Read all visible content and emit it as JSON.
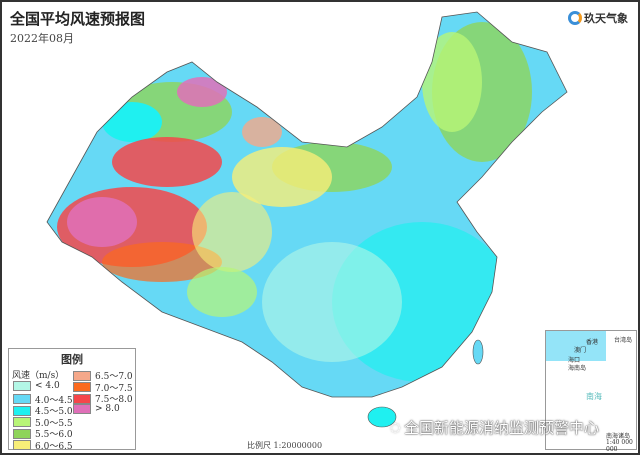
{
  "header": {
    "title": "全国平均风速预报图",
    "subtitle": "2022年08月"
  },
  "logo": {
    "text": "玖天气象"
  },
  "legend": {
    "title": "图例",
    "unit_label": "风速（m/s）",
    "items": [
      {
        "label": "< 4.0",
        "color": "#b3f7e6"
      },
      {
        "label": "4.0～4.5",
        "color": "#66d9f5"
      },
      {
        "label": "4.5～5.0",
        "color": "#1ff0f0"
      },
      {
        "label": "5.0～5.5",
        "color": "#b8f577"
      },
      {
        "label": "5.5～6.0",
        "color": "#8ed45a"
      },
      {
        "label": "6.0～6.5",
        "color": "#f8ee78"
      },
      {
        "label": "6.5～7.0",
        "color": "#f5a88a"
      },
      {
        "label": "7.0～7.5",
        "color": "#fb6a1e"
      },
      {
        "label": "7.5～8.0",
        "color": "#f5464a"
      },
      {
        "label": "> 8.0",
        "color": "#e070b8"
      }
    ]
  },
  "scale": "比例尺 1:20000000",
  "watermark": "全国新能源消纳监测预警中心",
  "inset": {
    "title": "南海诸岛",
    "scale": "1:40 000 000",
    "labels": [
      "香港",
      "澳门",
      "台湾岛",
      "海口",
      "海南岛",
      "南海"
    ]
  }
}
